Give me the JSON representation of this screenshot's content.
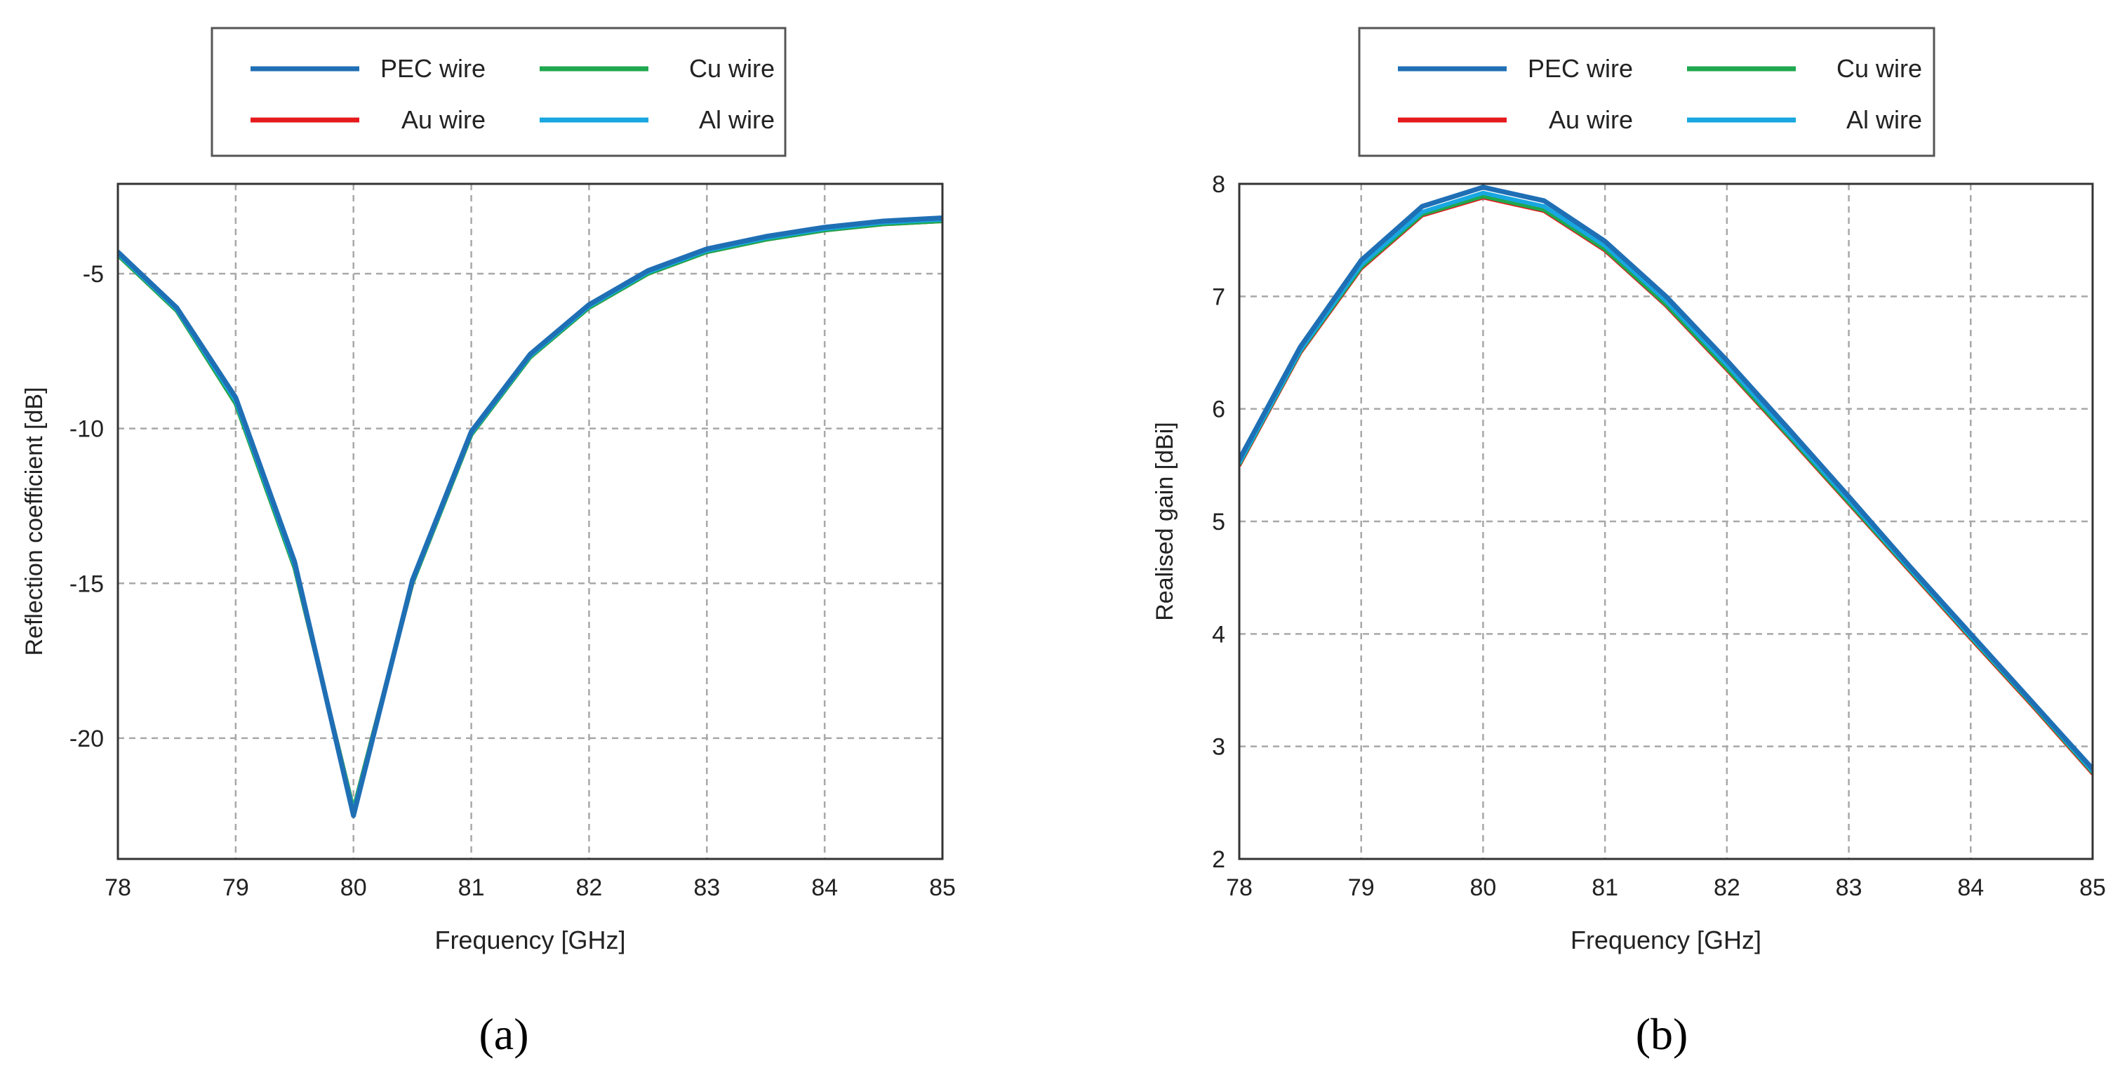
{
  "colors": {
    "pec": "#1f6fb5",
    "au": "#e41a1c",
    "cu": "#1fa84f",
    "al": "#18a7e0",
    "grid": "#a8a8a8",
    "axis": "#333333",
    "text": "#222222"
  },
  "chart_data": [
    {
      "type": "line",
      "sublabel": "(a)",
      "title": "",
      "xlabel": "Frequency [GHz]",
      "ylabel": "Reflection coefficient [dB]",
      "xlim": [
        78,
        85
      ],
      "ylim": [
        -23.9,
        -2.1
      ],
      "xticks": [
        78,
        79,
        80,
        81,
        82,
        83,
        84,
        85
      ],
      "yticks": [
        -5,
        -10,
        -15,
        -20
      ],
      "grid": true,
      "legend_position": "top",
      "x": [
        78,
        78.5,
        79,
        79.5,
        80,
        80.5,
        81,
        81.5,
        82,
        82.5,
        83,
        83.5,
        84,
        84.5,
        85
      ],
      "series": [
        {
          "name": "PEC wire",
          "color_key": "pec",
          "values": [
            -4.3,
            -6.1,
            -9.0,
            -14.3,
            -22.5,
            -14.9,
            -10.1,
            -7.6,
            -6.0,
            -4.9,
            -4.2,
            -3.8,
            -3.5,
            -3.3,
            -3.2
          ]
        },
        {
          "name": "Au wire",
          "color_key": "au",
          "values": [
            -4.4,
            -6.2,
            -9.2,
            -14.5,
            -22.3,
            -15.0,
            -10.2,
            -7.7,
            -6.1,
            -5.0,
            -4.3,
            -3.9,
            -3.6,
            -3.4,
            -3.3
          ]
        },
        {
          "name": "Cu wire",
          "color_key": "cu",
          "values": [
            -4.4,
            -6.2,
            -9.2,
            -14.5,
            -22.3,
            -15.0,
            -10.2,
            -7.7,
            -6.1,
            -5.0,
            -4.3,
            -3.9,
            -3.6,
            -3.4,
            -3.3
          ]
        },
        {
          "name": "Al wire",
          "color_key": "al",
          "values": [
            -4.35,
            -6.15,
            -9.1,
            -14.4,
            -22.4,
            -14.95,
            -10.15,
            -7.65,
            -6.05,
            -4.95,
            -4.25,
            -3.85,
            -3.55,
            -3.35,
            -3.25
          ]
        }
      ],
      "draw_order": [
        "Au wire",
        "Cu wire",
        "Al wire",
        "PEC wire"
      ]
    },
    {
      "type": "line",
      "sublabel": "(b)",
      "title": "",
      "xlabel": "Frequency [GHz]",
      "ylabel": "Realised gain [dBi]",
      "xlim": [
        78,
        85
      ],
      "ylim": [
        2,
        8
      ],
      "xticks": [
        78,
        79,
        80,
        81,
        82,
        83,
        84,
        85
      ],
      "yticks": [
        2,
        3,
        4,
        5,
        6,
        7,
        8
      ],
      "grid": true,
      "legend_position": "top",
      "x": [
        78,
        78.5,
        79,
        79.5,
        80,
        80.5,
        81,
        81.5,
        82,
        82.5,
        83,
        83.5,
        84,
        84.5,
        85
      ],
      "series": [
        {
          "name": "PEC wire",
          "color_key": "pec",
          "values": [
            5.55,
            6.55,
            7.32,
            7.8,
            7.97,
            7.85,
            7.49,
            7.0,
            6.43,
            5.83,
            5.22,
            4.6,
            4.0,
            3.4,
            2.8
          ]
        },
        {
          "name": "Au wire",
          "color_key": "au",
          "values": [
            5.5,
            6.5,
            7.25,
            7.72,
            7.88,
            7.76,
            7.41,
            6.92,
            6.35,
            5.76,
            5.16,
            4.56,
            3.96,
            3.37,
            2.76
          ]
        },
        {
          "name": "Cu wire",
          "color_key": "cu",
          "values": [
            5.51,
            6.51,
            7.26,
            7.73,
            7.89,
            7.77,
            7.42,
            6.93,
            6.36,
            5.77,
            5.17,
            4.57,
            3.97,
            3.38,
            2.77
          ]
        },
        {
          "name": "Al wire",
          "color_key": "al",
          "values": [
            5.52,
            6.52,
            7.28,
            7.75,
            7.92,
            7.8,
            7.45,
            6.96,
            6.39,
            5.79,
            5.19,
            4.58,
            3.98,
            3.39,
            2.78
          ]
        }
      ],
      "draw_order": [
        "Au wire",
        "Cu wire",
        "Al wire",
        "PEC wire"
      ]
    }
  ]
}
